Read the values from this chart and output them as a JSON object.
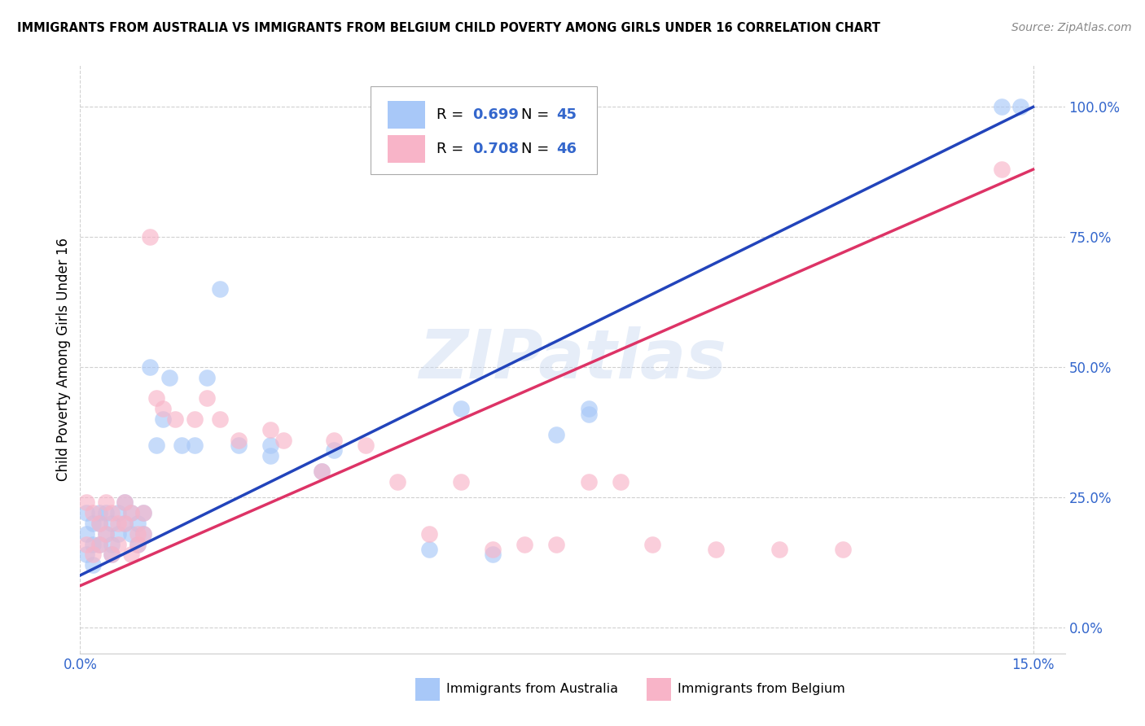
{
  "title": "IMMIGRANTS FROM AUSTRALIA VS IMMIGRANTS FROM BELGIUM CHILD POVERTY AMONG GIRLS UNDER 16 CORRELATION CHART",
  "source": "Source: ZipAtlas.com",
  "ylabel": "Child Poverty Among Girls Under 16",
  "color_australia": "#a8c8f8",
  "color_belgium": "#f8b4c8",
  "line_color_australia": "#2244bb",
  "line_color_belgium": "#dd3366",
  "watermark": "ZIPatlas",
  "xlim": [
    0.0,
    0.155
  ],
  "ylim": [
    -0.05,
    1.08
  ],
  "ytick_vals": [
    0.0,
    0.25,
    0.5,
    0.75,
    1.0
  ],
  "ytick_labels": [
    "0.0%",
    "25.0%",
    "50.0%",
    "75.0%",
    "100.0%"
  ],
  "xtick_vals": [
    0.0,
    0.15
  ],
  "xtick_labels": [
    "0.0%",
    "15.0%"
  ],
  "aus_line_x0": 0.0,
  "aus_line_y0": 0.1,
  "aus_line_x1": 0.15,
  "aus_line_y1": 1.0,
  "bel_line_x0": 0.0,
  "bel_line_y0": 0.08,
  "bel_line_x1": 0.15,
  "bel_line_y1": 0.88,
  "aus_scatter_x": [
    0.001,
    0.001,
    0.001,
    0.002,
    0.002,
    0.002,
    0.003,
    0.003,
    0.003,
    0.004,
    0.004,
    0.005,
    0.005,
    0.005,
    0.006,
    0.006,
    0.007,
    0.007,
    0.008,
    0.008,
    0.009,
    0.009,
    0.01,
    0.01,
    0.011,
    0.012,
    0.013,
    0.014,
    0.016,
    0.018,
    0.02,
    0.022,
    0.025,
    0.03,
    0.03,
    0.038,
    0.04,
    0.055,
    0.06,
    0.065,
    0.075,
    0.08,
    0.08,
    0.145,
    0.148
  ],
  "aus_scatter_y": [
    0.22,
    0.18,
    0.14,
    0.2,
    0.16,
    0.12,
    0.22,
    0.16,
    0.2,
    0.18,
    0.22,
    0.14,
    0.2,
    0.16,
    0.18,
    0.22,
    0.24,
    0.2,
    0.18,
    0.22,
    0.2,
    0.16,
    0.22,
    0.18,
    0.5,
    0.35,
    0.4,
    0.48,
    0.35,
    0.35,
    0.48,
    0.65,
    0.35,
    0.33,
    0.35,
    0.3,
    0.34,
    0.15,
    0.42,
    0.14,
    0.37,
    0.41,
    0.42,
    1.0,
    1.0
  ],
  "bel_scatter_x": [
    0.001,
    0.001,
    0.002,
    0.002,
    0.003,
    0.003,
    0.004,
    0.004,
    0.005,
    0.005,
    0.006,
    0.006,
    0.007,
    0.007,
    0.008,
    0.008,
    0.009,
    0.009,
    0.01,
    0.01,
    0.011,
    0.012,
    0.013,
    0.015,
    0.018,
    0.02,
    0.022,
    0.025,
    0.03,
    0.032,
    0.038,
    0.04,
    0.045,
    0.05,
    0.055,
    0.06,
    0.065,
    0.07,
    0.075,
    0.08,
    0.085,
    0.09,
    0.1,
    0.11,
    0.12,
    0.145
  ],
  "bel_scatter_y": [
    0.24,
    0.16,
    0.22,
    0.14,
    0.2,
    0.16,
    0.24,
    0.18,
    0.22,
    0.14,
    0.2,
    0.16,
    0.24,
    0.2,
    0.14,
    0.22,
    0.18,
    0.16,
    0.22,
    0.18,
    0.75,
    0.44,
    0.42,
    0.4,
    0.4,
    0.44,
    0.4,
    0.36,
    0.38,
    0.36,
    0.3,
    0.36,
    0.35,
    0.28,
    0.18,
    0.28,
    0.15,
    0.16,
    0.16,
    0.28,
    0.28,
    0.16,
    0.15,
    0.15,
    0.15,
    0.88
  ]
}
